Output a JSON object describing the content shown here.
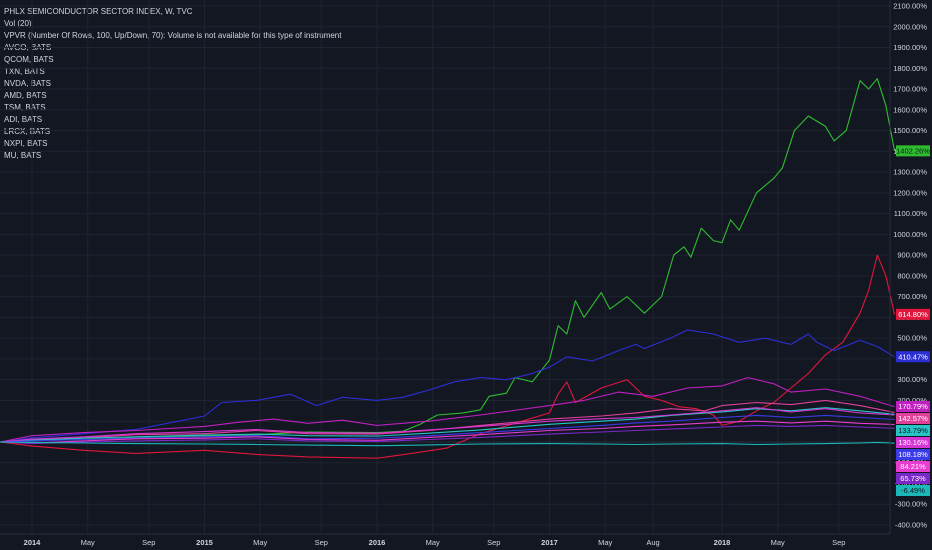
{
  "legend": {
    "title": "PHLX SEMICONDUCTOR SECTOR INDEX, W, TVC",
    "lines": [
      "Vol (20)",
      "VPVR (Number Of Rows, 100, Up/Down, 70): Volume is not available for this type of instrument",
      "AVGO, BATS",
      "QCOM, BATS",
      "TXN, BATS",
      "NVDA, BATS",
      "AMD, BATS",
      "TSM, BATS",
      "ADI, BATS",
      "LRCX, BATS",
      "NXPI, BATS",
      "MU, BATS"
    ]
  },
  "chart_data": {
    "type": "line",
    "y_unit": "%",
    "ylim": [
      -400,
      2100
    ],
    "y_ticks": [
      "2100.00%",
      "2000.00%",
      "1900.00%",
      "1800.00%",
      "1700.00%",
      "1600.00%",
      "1500.00%",
      "1400.00%",
      "1300.00%",
      "1200.00%",
      "1100.00%",
      "1000.00%",
      "900.00%",
      "800.00%",
      "700.00%",
      "600.00%",
      "500.00%",
      "400.00%",
      "300.00%",
      "200.00%",
      "100.00%",
      "0.00%",
      "-100.00%",
      "-200.00%",
      "-300.00%",
      "-400.00%"
    ],
    "x_ticks": [
      "2014",
      "May",
      "Sep",
      "2015",
      "May",
      "Sep",
      "2016",
      "May",
      "Sep",
      "2017",
      "May",
      "Aug",
      "2018",
      "May",
      "Sep"
    ],
    "x_tick_pos": [
      0.0,
      0.323,
      0.677,
      1.0,
      1.323,
      1.677,
      2.0,
      2.323,
      2.677,
      3.0,
      3.323,
      3.6,
      4.0,
      4.323,
      4.677
    ],
    "x_range": [
      -0.17,
      4.92
    ],
    "grid": true,
    "series": [
      {
        "color": "#2ebd2e",
        "badge": "1402.26%",
        "badge_value": 1402.26,
        "points": [
          [
            -0.17,
            0
          ],
          [
            0,
            6
          ],
          [
            0.3,
            12
          ],
          [
            0.6,
            20
          ],
          [
            1.0,
            28
          ],
          [
            1.3,
            35
          ],
          [
            1.6,
            48
          ],
          [
            2.0,
            45
          ],
          [
            2.15,
            52
          ],
          [
            2.25,
            85
          ],
          [
            2.35,
            130
          ],
          [
            2.5,
            140
          ],
          [
            2.6,
            155
          ],
          [
            2.65,
            220
          ],
          [
            2.75,
            235
          ],
          [
            2.8,
            310
          ],
          [
            2.9,
            290
          ],
          [
            3.0,
            395
          ],
          [
            3.05,
            560
          ],
          [
            3.1,
            520
          ],
          [
            3.15,
            680
          ],
          [
            3.2,
            600
          ],
          [
            3.3,
            720
          ],
          [
            3.35,
            640
          ],
          [
            3.45,
            700
          ],
          [
            3.55,
            620
          ],
          [
            3.6,
            660
          ],
          [
            3.65,
            700
          ],
          [
            3.72,
            900
          ],
          [
            3.78,
            940
          ],
          [
            3.82,
            890
          ],
          [
            3.88,
            1030
          ],
          [
            3.95,
            970
          ],
          [
            4.0,
            960
          ],
          [
            4.05,
            1070
          ],
          [
            4.1,
            1020
          ],
          [
            4.2,
            1200
          ],
          [
            4.3,
            1270
          ],
          [
            4.35,
            1320
          ],
          [
            4.42,
            1500
          ],
          [
            4.5,
            1570
          ],
          [
            4.6,
            1520
          ],
          [
            4.65,
            1450
          ],
          [
            4.72,
            1500
          ],
          [
            4.8,
            1740
          ],
          [
            4.85,
            1700
          ],
          [
            4.9,
            1750
          ],
          [
            4.95,
            1620
          ],
          [
            5.0,
            1402
          ]
        ]
      },
      {
        "color": "#e0163c",
        "badge": "614.80%",
        "badge_value": 614.8,
        "points": [
          [
            -0.17,
            0
          ],
          [
            0,
            -20
          ],
          [
            0.3,
            -40
          ],
          [
            0.6,
            -55
          ],
          [
            1.0,
            -40
          ],
          [
            1.3,
            -60
          ],
          [
            1.6,
            -72
          ],
          [
            2.0,
            -78
          ],
          [
            2.2,
            -55
          ],
          [
            2.4,
            -30
          ],
          [
            2.6,
            40
          ],
          [
            2.8,
            90
          ],
          [
            3.0,
            140
          ],
          [
            3.05,
            230
          ],
          [
            3.1,
            290
          ],
          [
            3.15,
            190
          ],
          [
            3.3,
            260
          ],
          [
            3.45,
            300
          ],
          [
            3.55,
            220
          ],
          [
            3.65,
            200
          ],
          [
            3.75,
            170
          ],
          [
            3.85,
            160
          ],
          [
            3.95,
            130
          ],
          [
            4.0,
            80
          ],
          [
            4.1,
            100
          ],
          [
            4.2,
            150
          ],
          [
            4.3,
            190
          ],
          [
            4.4,
            260
          ],
          [
            4.5,
            330
          ],
          [
            4.6,
            420
          ],
          [
            4.7,
            480
          ],
          [
            4.8,
            620
          ],
          [
            4.85,
            730
          ],
          [
            4.9,
            900
          ],
          [
            4.95,
            800
          ],
          [
            5.0,
            614
          ]
        ]
      },
      {
        "color": "#2c2fd6",
        "badge": "410.47%",
        "badge_value": 410.47,
        "points": [
          [
            -0.17,
            0
          ],
          [
            0,
            20
          ],
          [
            0.3,
            40
          ],
          [
            0.6,
            60
          ],
          [
            0.85,
            100
          ],
          [
            1.0,
            125
          ],
          [
            1.1,
            190
          ],
          [
            1.3,
            200
          ],
          [
            1.5,
            230
          ],
          [
            1.65,
            175
          ],
          [
            1.8,
            215
          ],
          [
            2.0,
            200
          ],
          [
            2.15,
            215
          ],
          [
            2.3,
            250
          ],
          [
            2.45,
            290
          ],
          [
            2.6,
            310
          ],
          [
            2.75,
            300
          ],
          [
            2.9,
            330
          ],
          [
            3.0,
            360
          ],
          [
            3.1,
            410
          ],
          [
            3.25,
            390
          ],
          [
            3.4,
            440
          ],
          [
            3.5,
            470
          ],
          [
            3.55,
            450
          ],
          [
            3.7,
            500
          ],
          [
            3.8,
            540
          ],
          [
            3.95,
            520
          ],
          [
            4.1,
            480
          ],
          [
            4.25,
            500
          ],
          [
            4.4,
            470
          ],
          [
            4.5,
            520
          ],
          [
            4.55,
            480
          ],
          [
            4.65,
            440
          ],
          [
            4.8,
            490
          ],
          [
            4.9,
            460
          ],
          [
            5.0,
            410
          ]
        ]
      },
      {
        "color": "#c020c0",
        "badge": "170.79%",
        "badge_value": 170.79,
        "points": [
          [
            -0.17,
            0
          ],
          [
            0,
            30
          ],
          [
            0.3,
            45
          ],
          [
            0.6,
            55
          ],
          [
            1.0,
            75
          ],
          [
            1.2,
            95
          ],
          [
            1.4,
            110
          ],
          [
            1.6,
            90
          ],
          [
            1.8,
            105
          ],
          [
            2.0,
            80
          ],
          [
            2.3,
            100
          ],
          [
            2.6,
            130
          ],
          [
            3.0,
            175
          ],
          [
            3.2,
            200
          ],
          [
            3.4,
            240
          ],
          [
            3.6,
            220
          ],
          [
            3.8,
            260
          ],
          [
            4.0,
            270
          ],
          [
            4.15,
            310
          ],
          [
            4.3,
            280
          ],
          [
            4.4,
            240
          ],
          [
            4.6,
            255
          ],
          [
            4.8,
            220
          ],
          [
            4.9,
            195
          ],
          [
            5.0,
            170
          ]
        ]
      },
      {
        "color": "#e0409a",
        "badge": "142.57%",
        "badge_value": 142.57,
        "points": [
          [
            -0.17,
            0
          ],
          [
            0,
            10
          ],
          [
            0.3,
            20
          ],
          [
            0.6,
            35
          ],
          [
            1.0,
            40
          ],
          [
            1.3,
            55
          ],
          [
            1.6,
            40
          ],
          [
            2.0,
            38
          ],
          [
            2.3,
            55
          ],
          [
            2.6,
            80
          ],
          [
            3.0,
            110
          ],
          [
            3.3,
            125
          ],
          [
            3.5,
            140
          ],
          [
            3.7,
            160
          ],
          [
            3.9,
            150
          ],
          [
            4.0,
            175
          ],
          [
            4.2,
            190
          ],
          [
            4.4,
            180
          ],
          [
            4.6,
            200
          ],
          [
            4.8,
            175
          ],
          [
            5.0,
            142
          ]
        ]
      },
      {
        "color": "#27c5c5",
        "badge": "133.79%",
        "badge_value": 133.79,
        "points": [
          [
            -0.17,
            0
          ],
          [
            0,
            8
          ],
          [
            0.3,
            18
          ],
          [
            0.6,
            25
          ],
          [
            1.0,
            33
          ],
          [
            1.3,
            38
          ],
          [
            1.6,
            30
          ],
          [
            2.0,
            28
          ],
          [
            2.3,
            42
          ],
          [
            2.6,
            58
          ],
          [
            3.0,
            85
          ],
          [
            3.3,
            100
          ],
          [
            3.5,
            110
          ],
          [
            3.7,
            128
          ],
          [
            4.0,
            145
          ],
          [
            4.2,
            160
          ],
          [
            4.4,
            150
          ],
          [
            4.6,
            165
          ],
          [
            4.8,
            150
          ],
          [
            5.0,
            133
          ]
        ]
      },
      {
        "color": "#d435d4",
        "badge": "130.16%",
        "badge_value": 130.16,
        "points": [
          [
            -0.17,
            0
          ],
          [
            0,
            14
          ],
          [
            0.3,
            25
          ],
          [
            0.6,
            40
          ],
          [
            1.0,
            50
          ],
          [
            1.3,
            60
          ],
          [
            1.6,
            45
          ],
          [
            2.0,
            42
          ],
          [
            2.3,
            58
          ],
          [
            2.6,
            75
          ],
          [
            3.0,
            100
          ],
          [
            3.3,
            112
          ],
          [
            3.5,
            118
          ],
          [
            3.7,
            130
          ],
          [
            4.0,
            150
          ],
          [
            4.2,
            165
          ],
          [
            4.4,
            145
          ],
          [
            4.6,
            160
          ],
          [
            4.8,
            140
          ],
          [
            5.0,
            130
          ]
        ]
      },
      {
        "color": "#3a3ae8",
        "badge": "108.18%",
        "badge_value": 108.18,
        "points": [
          [
            -0.17,
            0
          ],
          [
            0,
            5
          ],
          [
            0.3,
            12
          ],
          [
            0.6,
            18
          ],
          [
            1.0,
            25
          ],
          [
            1.3,
            30
          ],
          [
            1.6,
            15
          ],
          [
            2.0,
            18
          ],
          [
            2.3,
            30
          ],
          [
            2.6,
            45
          ],
          [
            3.0,
            65
          ],
          [
            3.3,
            80
          ],
          [
            3.5,
            92
          ],
          [
            3.7,
            100
          ],
          [
            4.0,
            118
          ],
          [
            4.2,
            128
          ],
          [
            4.4,
            118
          ],
          [
            4.6,
            128
          ],
          [
            4.8,
            118
          ],
          [
            5.0,
            108
          ]
        ]
      },
      {
        "color": "#e83bd0",
        "badge": "84.21%",
        "badge_value": 84.21,
        "points": [
          [
            -0.17,
            0
          ],
          [
            0,
            -5
          ],
          [
            0.3,
            5
          ],
          [
            0.6,
            15
          ],
          [
            1.0,
            18
          ],
          [
            1.3,
            25
          ],
          [
            1.6,
            12
          ],
          [
            2.0,
            8
          ],
          [
            2.3,
            22
          ],
          [
            2.6,
            35
          ],
          [
            3.0,
            55
          ],
          [
            3.3,
            65
          ],
          [
            3.5,
            75
          ],
          [
            3.7,
            82
          ],
          [
            4.0,
            95
          ],
          [
            4.2,
            100
          ],
          [
            4.4,
            92
          ],
          [
            4.6,
            100
          ],
          [
            4.8,
            90
          ],
          [
            5.0,
            84
          ]
        ]
      },
      {
        "color": "#7b28c8",
        "badge": "65.73%",
        "badge_value": 65.73,
        "points": [
          [
            -0.17,
            0
          ],
          [
            0,
            -8
          ],
          [
            0.3,
            0
          ],
          [
            0.6,
            5
          ],
          [
            1.0,
            10
          ],
          [
            1.3,
            15
          ],
          [
            1.6,
            5
          ],
          [
            2.0,
            2
          ],
          [
            2.3,
            12
          ],
          [
            2.6,
            22
          ],
          [
            3.0,
            38
          ],
          [
            3.3,
            48
          ],
          [
            3.5,
            55
          ],
          [
            3.7,
            62
          ],
          [
            4.0,
            72
          ],
          [
            4.2,
            80
          ],
          [
            4.4,
            75
          ],
          [
            4.6,
            80
          ],
          [
            4.8,
            72
          ],
          [
            5.0,
            66
          ]
        ]
      },
      {
        "color": "#1ab8b8",
        "badge": "-6.49%",
        "badge_value": -6.49,
        "points": [
          [
            -0.17,
            0
          ],
          [
            0,
            -2
          ],
          [
            0.3,
            -5
          ],
          [
            0.6,
            -8
          ],
          [
            1.0,
            -10
          ],
          [
            1.3,
            -12
          ],
          [
            1.6,
            -15
          ],
          [
            2.0,
            -18
          ],
          [
            2.3,
            -14
          ],
          [
            2.6,
            -10
          ],
          [
            3.0,
            -8
          ],
          [
            3.3,
            -10
          ],
          [
            3.5,
            -12
          ],
          [
            3.7,
            -10
          ],
          [
            4.0,
            -8
          ],
          [
            4.2,
            -12
          ],
          [
            4.4,
            -10
          ],
          [
            4.6,
            -8
          ],
          [
            4.8,
            -5
          ],
          [
            4.9,
            -2
          ],
          [
            5.0,
            -6
          ]
        ]
      }
    ]
  }
}
